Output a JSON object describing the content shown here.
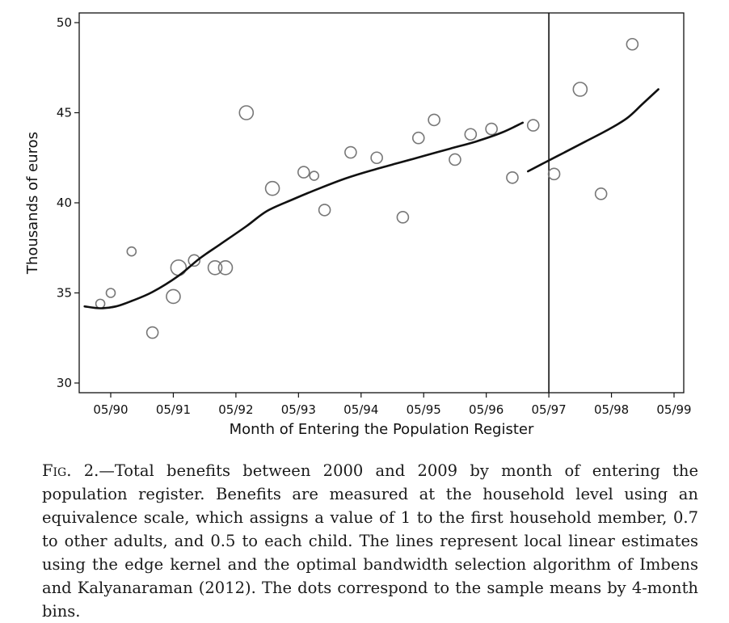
{
  "chart_data": {
    "type": "scatter",
    "xlabel": "Month of Entering the Population Register",
    "ylabel": "Thousands of euros",
    "ylim": [
      30,
      50
    ],
    "xlim": [
      "1989-10",
      "1999-03"
    ],
    "x_ticks": [
      "05/90",
      "05/91",
      "05/92",
      "05/93",
      "05/94",
      "05/95",
      "05/96",
      "05/97",
      "05/98",
      "05/99"
    ],
    "y_ticks": [
      30,
      35,
      40,
      45,
      50
    ],
    "cutoff": "05/97",
    "grid": false,
    "series": [
      {
        "kind": "points",
        "marker": "hollow-circle",
        "points": [
          {
            "x": "1990-03",
            "y": 34.4,
            "size": 1
          },
          {
            "x": "1990-05",
            "y": 35.0,
            "size": 1
          },
          {
            "x": "1990-09",
            "y": 37.3,
            "size": 1
          },
          {
            "x": "1991-01",
            "y": 32.8,
            "size": 2
          },
          {
            "x": "1991-05",
            "y": 34.8,
            "size": 3
          },
          {
            "x": "1991-06",
            "y": 36.4,
            "size": 4
          },
          {
            "x": "1991-09",
            "y": 36.8,
            "size": 2
          },
          {
            "x": "1992-01",
            "y": 36.4,
            "size": 3
          },
          {
            "x": "1992-03",
            "y": 36.4,
            "size": 3
          },
          {
            "x": "1992-07",
            "y": 45.0,
            "size": 3
          },
          {
            "x": "1992-12",
            "y": 40.8,
            "size": 3
          },
          {
            "x": "1993-06",
            "y": 41.7,
            "size": 2
          },
          {
            "x": "1993-08",
            "y": 41.5,
            "size": 1
          },
          {
            "x": "1993-10",
            "y": 39.6,
            "size": 2
          },
          {
            "x": "1994-03",
            "y": 42.8,
            "size": 2
          },
          {
            "x": "1994-08",
            "y": 42.5,
            "size": 2
          },
          {
            "x": "1995-01",
            "y": 39.2,
            "size": 2
          },
          {
            "x": "1995-04",
            "y": 43.6,
            "size": 2
          },
          {
            "x": "1995-07",
            "y": 44.6,
            "size": 2
          },
          {
            "x": "1995-11",
            "y": 42.4,
            "size": 2
          },
          {
            "x": "1996-02",
            "y": 43.8,
            "size": 2
          },
          {
            "x": "1996-06",
            "y": 44.1,
            "size": 2
          },
          {
            "x": "1996-10",
            "y": 41.4,
            "size": 2
          },
          {
            "x": "1997-02",
            "y": 44.3,
            "size": 2
          },
          {
            "x": "1997-06",
            "y": 41.6,
            "size": 2
          },
          {
            "x": "1997-11",
            "y": 46.3,
            "size": 3
          },
          {
            "x": "1998-03",
            "y": 40.5,
            "size": 2
          },
          {
            "x": "1998-09",
            "y": 48.8,
            "size": 2
          }
        ]
      },
      {
        "kind": "line",
        "segment": "left",
        "points": [
          {
            "x": "1989-12",
            "y": 34.25
          },
          {
            "x": "1990-03",
            "y": 34.15
          },
          {
            "x": "1990-06",
            "y": 34.25
          },
          {
            "x": "1990-09",
            "y": 34.55
          },
          {
            "x": "1991-01",
            "y": 35.05
          },
          {
            "x": "1991-06",
            "y": 35.95
          },
          {
            "x": "1991-10",
            "y": 36.9
          },
          {
            "x": "1992-02",
            "y": 37.7
          },
          {
            "x": "1992-07",
            "y": 38.7
          },
          {
            "x": "1992-11",
            "y": 39.55
          },
          {
            "x": "1993-04",
            "y": 40.2
          },
          {
            "x": "1993-09",
            "y": 40.8
          },
          {
            "x": "1994-02",
            "y": 41.35
          },
          {
            "x": "1994-07",
            "y": 41.8
          },
          {
            "x": "1994-12",
            "y": 42.2
          },
          {
            "x": "1995-05",
            "y": 42.6
          },
          {
            "x": "1995-10",
            "y": 43.0
          },
          {
            "x": "1996-03",
            "y": 43.4
          },
          {
            "x": "1996-08",
            "y": 43.9
          },
          {
            "x": "1996-12",
            "y": 44.45
          }
        ]
      },
      {
        "kind": "line",
        "segment": "right",
        "points": [
          {
            "x": "1997-01",
            "y": 41.75
          },
          {
            "x": "1997-04",
            "y": 42.2
          },
          {
            "x": "1997-08",
            "y": 42.8
          },
          {
            "x": "1997-12",
            "y": 43.4
          },
          {
            "x": "1998-04",
            "y": 44.0
          },
          {
            "x": "1998-08",
            "y": 44.7
          },
          {
            "x": "1998-11",
            "y": 45.5
          },
          {
            "x": "1999-02",
            "y": 46.3
          }
        ]
      }
    ]
  },
  "caption": {
    "fig_label": "Fig. 2.",
    "text": "—Total benefits between 2000 and 2009 by month of entering the population register. Benefits are measured at the household level using an equivalence scale, which assigns a value of 1 to the first household member, 0.7 to other adults, and 0.5 to each child. The lines represent local linear estimates using the edge kernel and the optimal bandwidth selection algorithm of Imbens and Kalyanaraman (2012). The dots correspond to the sample means by 4-month bins."
  },
  "colors": {
    "ink": "#111111",
    "marker": "#777777"
  }
}
